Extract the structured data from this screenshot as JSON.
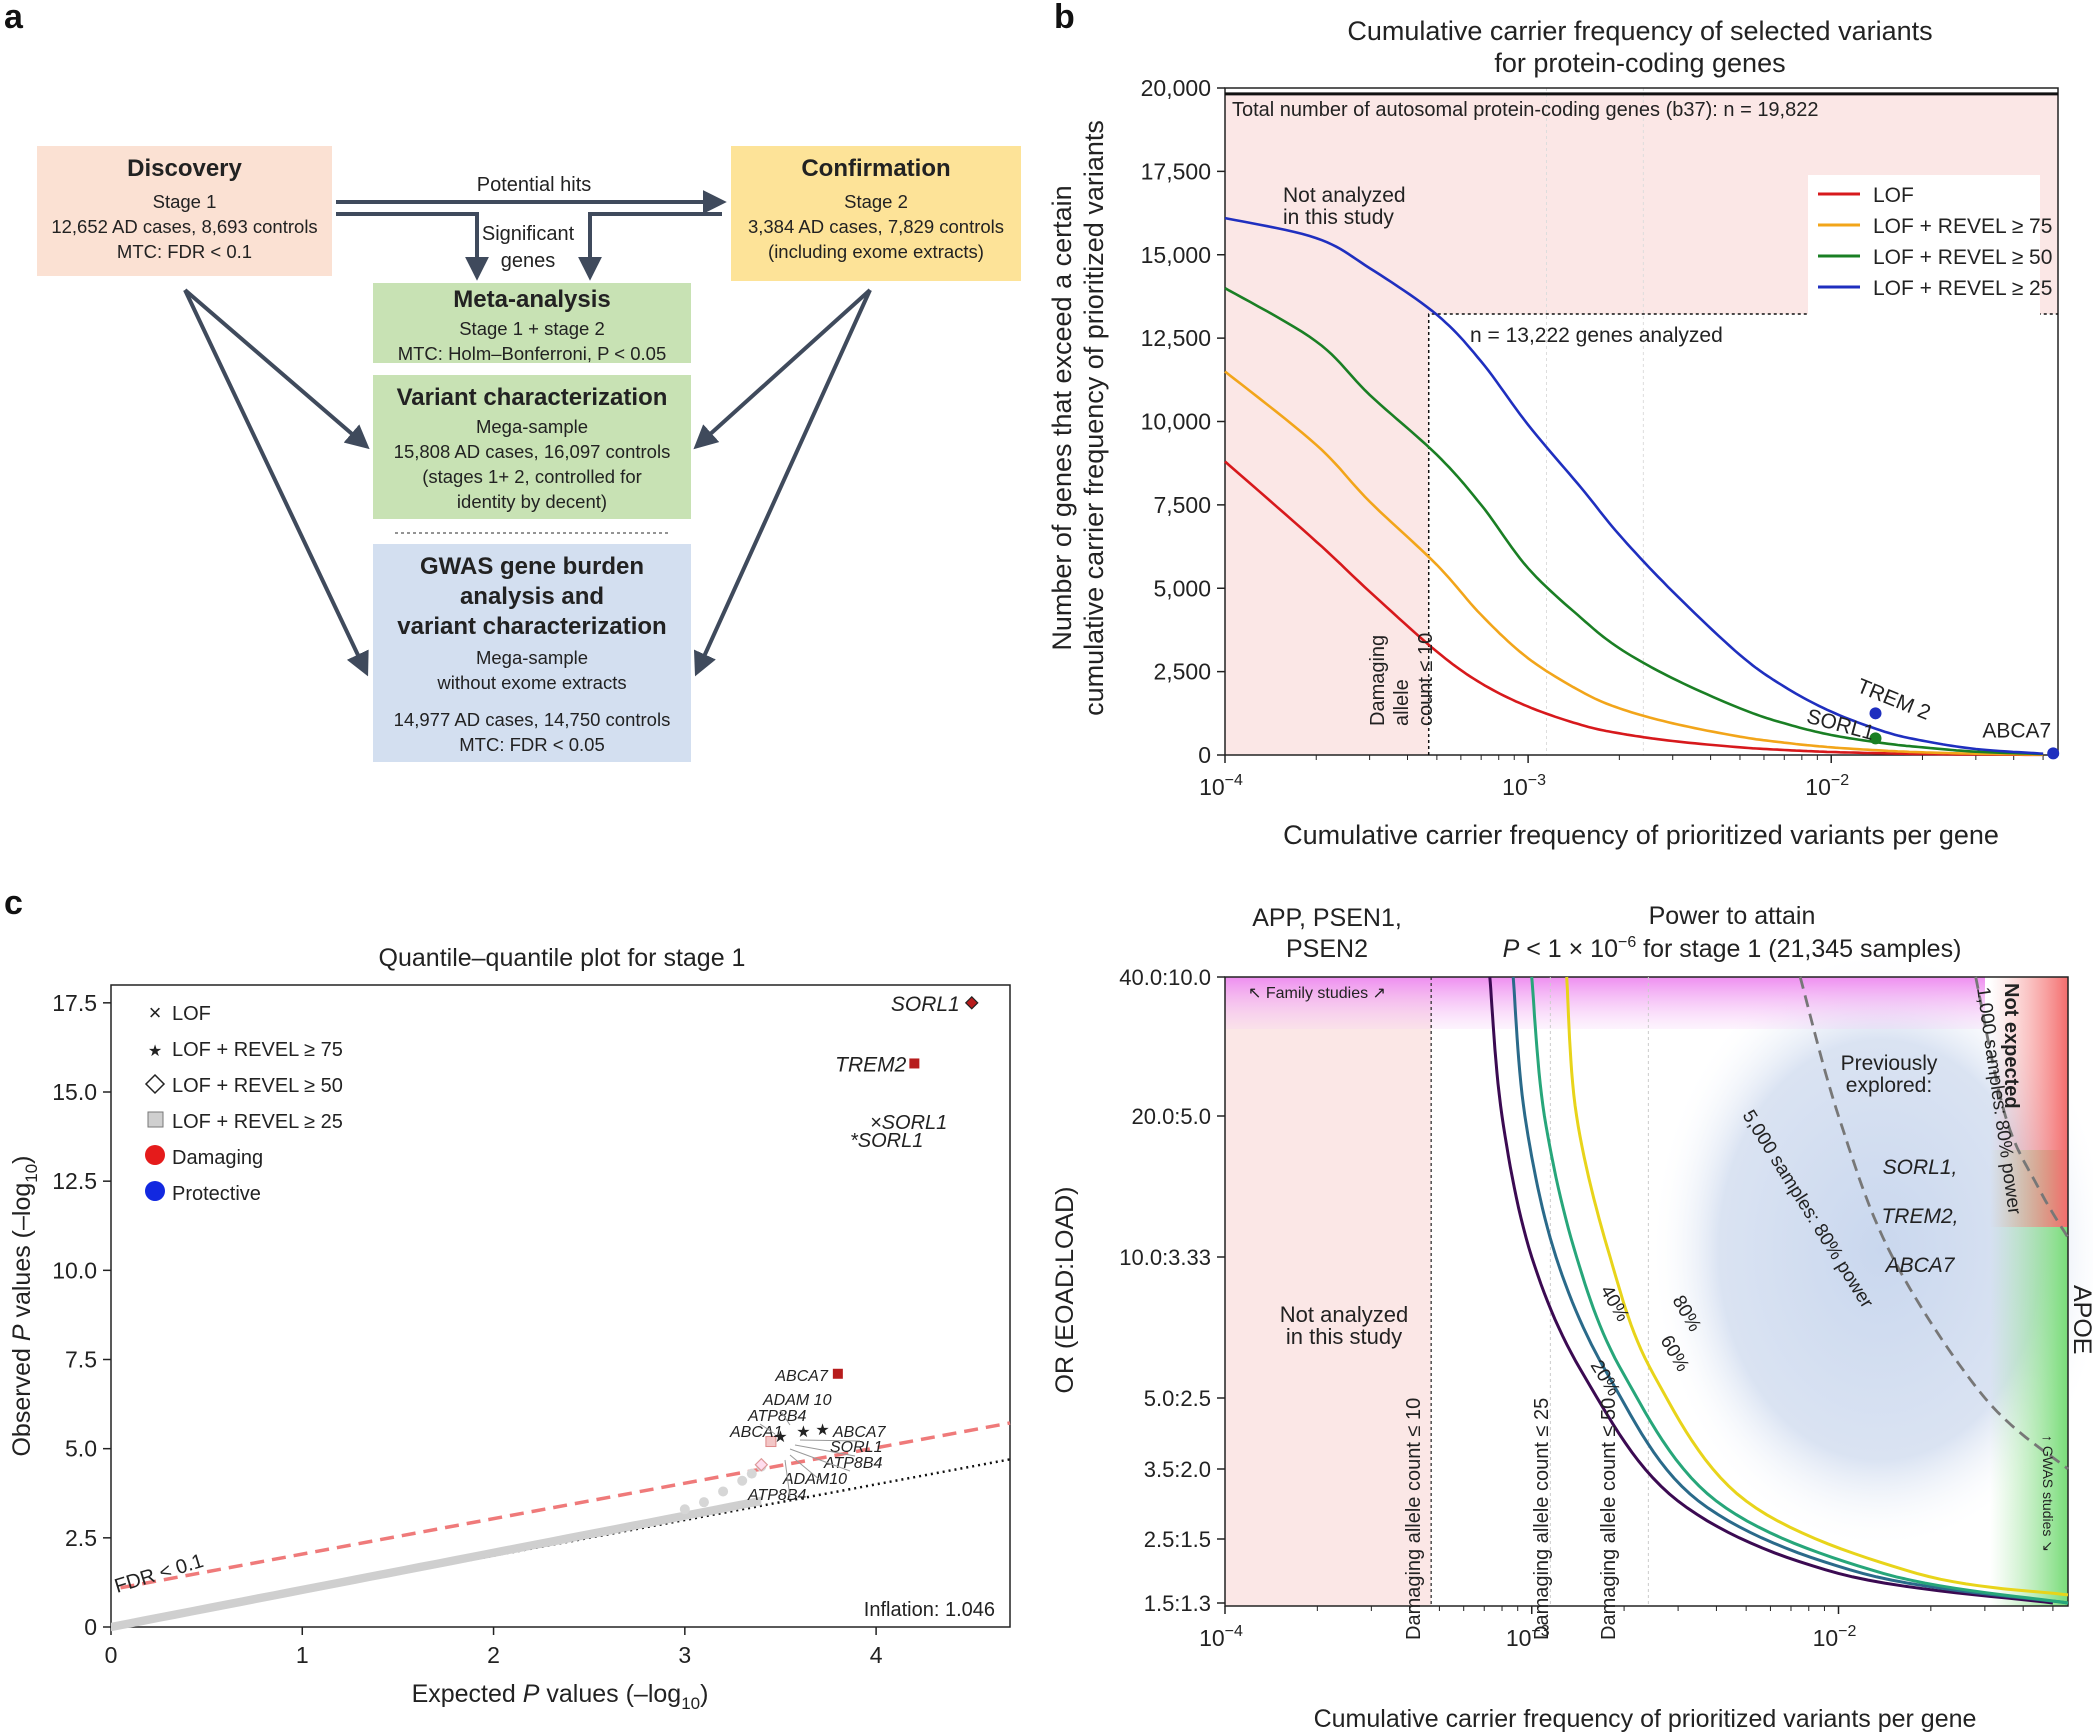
{
  "panel_labels": {
    "a": "a",
    "b": "b",
    "c": "c"
  },
  "panel_a": {
    "discovery": {
      "title": "Discovery",
      "lines": [
        "Stage 1",
        "12,652 AD cases, 8,693 controls",
        "MTC: FDR < 0.1"
      ]
    },
    "confirmation": {
      "title": "Confirmation",
      "lines": [
        "Stage 2",
        "3,384 AD cases, 7,829 controls",
        "(including exome extracts)"
      ]
    },
    "meta": {
      "title": "Meta-analysis",
      "lines": [
        "Stage 1 + stage 2",
        "MTC: Holm–Bonferroni, P < 0.05"
      ]
    },
    "variant": {
      "title": "Variant characterization",
      "lines": [
        "Mega-sample",
        "15,808 AD cases, 16,097 controls",
        "(stages 1+ 2, controlled for",
        "identity by decent)"
      ]
    },
    "gwas": {
      "title_lines": [
        "GWAS gene burden",
        "analysis and",
        "variant characterization"
      ],
      "lines": [
        "Mega-sample",
        "without exome extracts",
        "",
        "14,977 AD cases, 14,750 controls",
        "MTC: FDR < 0.05"
      ]
    },
    "arrow_potential_hits": "Potential hits",
    "arrow_significant": [
      "Significant",
      "genes"
    ]
  },
  "panel_b": {
    "title_lines": [
      "Cumulative carrier frequency of selected variants",
      "for protein-coding genes"
    ],
    "ylabel_lines": [
      "Number of genes that exceed a certain",
      "cumulative carrier frequency of prioritized variants"
    ],
    "xlabel": "Cumulative carrier frequency of prioritized variants per gene",
    "total_label": "Total number of autosomal protein-coding genes (b37): n = 19,822",
    "analyzed_label": "n = 13,222 genes analyzed",
    "not_analyzed": [
      "Not analyzed",
      "in this study"
    ],
    "damaging_label": [
      "Damaging",
      "allele",
      "count ≤ 10"
    ],
    "gene_labels": [
      "TREM 2",
      "SORL1",
      "ABCA7"
    ],
    "legend": [
      "LOF",
      "LOF + REVEL ≥ 75",
      "LOF + REVEL ≥ 50",
      "LOF + REVEL ≥ 25"
    ],
    "colors": [
      "#d7191c",
      "#f2a51a",
      "#1a7f24",
      "#1f2fbf"
    ],
    "yticks": [
      "0",
      "2,500",
      "5,000",
      "7,500",
      "10,000",
      "12,500",
      "15,000",
      "17,500",
      "20,000"
    ],
    "xticks": [
      {
        "base": "10",
        "exp": "−4"
      },
      {
        "base": "10",
        "exp": "−3"
      },
      {
        "base": "10",
        "exp": "−2"
      }
    ]
  },
  "chart_data": [
    {
      "type": "line",
      "title": "Cumulative carrier frequency of selected variants for protein-coding genes",
      "xlabel": "Cumulative carrier frequency of prioritized variants per gene",
      "ylabel": "Number of genes that exceed a certain cumulative carrier frequency of prioritized variants",
      "x_scale": "log",
      "xlim": [
        0.0001,
        0.056
      ],
      "ylim": [
        0,
        20000
      ],
      "x": [
        0.0001,
        0.0002,
        0.0003,
        0.0005,
        0.0007,
        0.001,
        0.0015,
        0.002,
        0.003,
        0.005,
        0.007,
        0.01,
        0.015,
        0.02,
        0.03,
        0.05
      ],
      "series": [
        {
          "name": "LOF",
          "values": [
            8800,
            6400,
            4900,
            3100,
            2150,
            1450,
            900,
            650,
            420,
            230,
            150,
            90,
            50,
            30,
            15,
            5
          ]
        },
        {
          "name": "LOF + REVEL ≥ 75",
          "values": [
            11500,
            9300,
            7600,
            5700,
            4200,
            2900,
            1900,
            1400,
            950,
            550,
            370,
            230,
            130,
            80,
            40,
            10
          ]
        },
        {
          "name": "LOF + REVEL ≥ 50",
          "values": [
            14000,
            12400,
            10800,
            9000,
            7500,
            5600,
            4100,
            3200,
            2300,
            1400,
            950,
            600,
            350,
            230,
            100,
            30
          ]
        },
        {
          "name": "LOF + REVEL ≥ 25",
          "values": [
            16100,
            15500,
            14600,
            13200,
            11800,
            9900,
            8000,
            6600,
            4900,
            3000,
            2050,
            1300,
            700,
            430,
            180,
            40
          ]
        }
      ],
      "points": [
        {
          "label": "TREM 2",
          "x": 0.014,
          "y": 1250
        },
        {
          "label": "SORL1",
          "x": 0.014,
          "y": 500
        },
        {
          "label": "ABCA7",
          "x": 0.054,
          "y": 50
        }
      ],
      "reference_lines": {
        "total_genes": 19822,
        "analyzed_genes": 13222,
        "damaging_allele_count_le_10_x": 0.00047
      }
    },
    {
      "type": "scatter",
      "title": "Quantile–quantile plot for stage 1",
      "xlabel": "Expected P values (–log10)",
      "ylabel": "Observed P values (–log10)",
      "xlim": [
        0,
        4.7
      ],
      "ylim": [
        0,
        18
      ],
      "xticks": [
        0,
        1,
        2,
        3,
        4
      ],
      "yticks": [
        0,
        2.5,
        5,
        7.5,
        10,
        12.5,
        15,
        17.5
      ],
      "labeled_points": [
        {
          "label": "SORL1",
          "x": 4.5,
          "y": 17.5,
          "marker": "diamond",
          "color": "#b71c1c"
        },
        {
          "label": "TREM2",
          "x": 4.2,
          "y": 15.8,
          "marker": "square",
          "color": "#b71c1c"
        },
        {
          "label": "ABCA7",
          "x": 3.8,
          "y": 7.1,
          "marker": "square",
          "color": "#b71c1c"
        },
        {
          "label": "ABCA1",
          "x": 3.5,
          "y": 5.3,
          "marker": "star"
        },
        {
          "label": "ATP8B4",
          "x": 3.6,
          "y": 5.5,
          "marker": "star"
        },
        {
          "label": "ADAM 10",
          "x": 3.7,
          "y": 5.6,
          "marker": "star"
        },
        {
          "label": "×SORL1",
          "x": 4.1,
          "y": 14.4,
          "marker": "cross",
          "color": "#9e9e9e"
        },
        {
          "label": "*SORL1",
          "x": 4.1,
          "y": 13.9,
          "marker": "star",
          "color": "#9e9e9e"
        },
        {
          "label": "ABCA7",
          "x": 3.5,
          "y": 5.2,
          "marker": "star",
          "color": "#9e9e9e"
        },
        {
          "label": "SORL1",
          "x": 3.5,
          "y": 4.9,
          "marker": "square",
          "color": "#9e9e9e"
        },
        {
          "label": "ATP8B4",
          "x": 3.45,
          "y": 4.6,
          "marker": "diamond",
          "color": "#9e9e9e"
        },
        {
          "label": "ADAM10",
          "x": 3.45,
          "y": 4.5,
          "marker": "diamond",
          "color": "#9e9e9e"
        },
        {
          "label": "ATP8B4",
          "x": 3.4,
          "y": 4.3,
          "marker": "diamond",
          "color": "#9e9e9e"
        }
      ],
      "fdr_line_label": "FDR < 0.1",
      "inflation": "Inflation: 1.046"
    },
    {
      "type": "line",
      "title": "Power to attain P < 1 × 10−6 for stage 1 (21,345 samples)",
      "xlabel": "Cumulative carrier frequency of prioritized variants per gene",
      "ylabel": "OR (EOAD:LOAD)",
      "x_scale": "log",
      "y_scale": "log",
      "xlim": [
        0.0001,
        0.056
      ],
      "yticks": [
        "40.0:10.0",
        "20.0:5.0",
        "10.0:3.33",
        "5.0:2.5",
        "3.5:2.0",
        "2.5:1.5",
        "1.5:1.3"
      ],
      "series": [
        {
          "name": "20%",
          "x": [
            0.00073,
            0.0008,
            0.001,
            0.0015,
            0.003,
            0.01,
            0.05
          ],
          "values": [
            40,
            20,
            10,
            5.5,
            3,
            1.9,
            1.5
          ]
        },
        {
          "name": "40%",
          "x": [
            0.00087,
            0.00095,
            0.0012,
            0.0018,
            0.0035,
            0.012,
            0.056
          ],
          "values": [
            40,
            20,
            10,
            5.5,
            3,
            1.9,
            1.4
          ]
        },
        {
          "name": "60%",
          "x": [
            0.001,
            0.0011,
            0.0014,
            0.002,
            0.004,
            0.014,
            0.056
          ],
          "values": [
            40,
            20,
            10,
            5.6,
            3,
            1.9,
            1.5
          ]
        },
        {
          "name": "80%",
          "x": [
            0.0013,
            0.0014,
            0.0018,
            0.0025,
            0.005,
            0.018,
            0.056
          ],
          "values": [
            40,
            20,
            10,
            5.6,
            3,
            1.9,
            1.6
          ]
        },
        {
          "name": "5,000 samples: 80% power",
          "x": [
            0.0075,
            0.01,
            0.015,
            0.03,
            0.056
          ],
          "values": [
            40,
            20,
            10,
            5,
            3.5
          ]
        },
        {
          "name": "1,000 samples: 80% power",
          "x": [
            0.028,
            0.035,
            0.045,
            0.056
          ],
          "values": [
            40,
            20,
            14,
            11
          ]
        }
      ]
    }
  ],
  "panel_c_left": {
    "title": "Quantile–quantile plot for stage 1",
    "xlabel_pre": "Expected ",
    "xlabel_p": "P",
    "xlabel_post": " values (–log",
    "xlabel_sub": "10",
    "xlabel_end": ")",
    "ylabel_pre": "Observed ",
    "ylabel_p": "P",
    "ylabel_post": " values (–log",
    "ylabel_sub": "10",
    "ylabel_end": ")",
    "legend": [
      "LOF",
      "LOF + REVEL ≥ 75",
      "LOF + REVEL ≥ 50",
      "LOF + REVEL ≥ 25",
      "Damaging",
      "Protective"
    ],
    "xticks": [
      "0",
      "1",
      "2",
      "3",
      "4"
    ],
    "yticks": [
      "0",
      "2.5",
      "5.0",
      "7.5",
      "10.0",
      "12.5",
      "15.0",
      "17.5"
    ],
    "fdr_label": "FDR < 0.1",
    "inflation": "Inflation: 1.046",
    "labels": {
      "sorl1": "SORL1",
      "trem2": "TREM2",
      "sorl1_x": "×SORL1",
      "sorl1_star": "*SORL1",
      "abca7": "ABCA7",
      "adam10": "ADAM 10",
      "atp8b4": "ATP8B4",
      "abca1": "ABCA1",
      "abca7_g": "ABCA7",
      "sorl1_g": "SORL1",
      "atp8b4_g": "ATP8B4",
      "adam10_g": "ADAM10",
      "atp8b4_g2": "ATP8B4"
    }
  },
  "panel_c_right": {
    "title_line1": "Power to attain",
    "title_line2": {
      "p": "P",
      "rest": " < 1 × 10",
      "exp": "−6",
      "end": " for stage 1 (21,345 samples)"
    },
    "ylabel": "OR (EOAD:LOAD)",
    "xlabel": "Cumulative carrier frequency of prioritized variants per gene",
    "top_left_label": [
      "APP, PSEN1,",
      "PSEN2"
    ],
    "family_studies": "Family studies",
    "not_analyzed": [
      "Not analyzed",
      "in this study"
    ],
    "previously": [
      "Previously",
      "explored:"
    ],
    "genes": [
      "SORL1,",
      "TREM2,",
      "ABCA7"
    ],
    "not_expected": "Not expected",
    "apoe": "APOE",
    "gwas_studies": "GWAS studies",
    "vlines": [
      "Damaging allele count ≤ 10",
      "Damaging allele count ≤ 25",
      "Damaging allele count ≤ 50"
    ],
    "curve_labels": [
      "20%",
      "40%",
      "60%",
      "80%"
    ],
    "curve_colors": [
      "#3b0a52",
      "#2a6a8a",
      "#27a67a",
      "#e8d41a"
    ],
    "dashed_labels": [
      "5,000 samples: 80% power",
      "1,000 samples: 80% power"
    ],
    "yticks": [
      "40.0:10.0",
      "20.0:5.0",
      "10.0:3.33",
      "5.0:2.5",
      "3.5:2.0",
      "2.5:1.5",
      "1.5:1.3"
    ],
    "xticks": [
      {
        "base": "10",
        "exp": "−4"
      },
      {
        "base": "10",
        "exp": "−3"
      },
      {
        "base": "10",
        "exp": "−2"
      }
    ]
  }
}
